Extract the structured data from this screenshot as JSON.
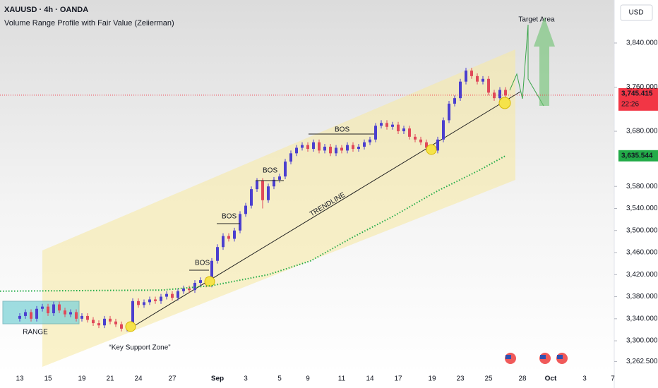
{
  "chart_data": {
    "type": "candlestick",
    "symbol": "XAUUSD · 4h · OANDA",
    "indicator": "Volume Range Profile with Fair Value (Zeiierman)",
    "currency": "USD",
    "up_color": "#4b3fcf",
    "down_color": "#e0495a",
    "xlim": [
      -3.5,
      105.25
    ],
    "ylim": [
      3240,
      3918
    ],
    "xticks": [
      {
        "value": 0,
        "label": "13"
      },
      {
        "value": 5,
        "label": "15"
      },
      {
        "value": 11,
        "label": "19"
      },
      {
        "value": 16,
        "label": "21"
      },
      {
        "value": 21,
        "label": "24"
      },
      {
        "value": 27,
        "label": "27"
      },
      {
        "value": 35,
        "label": "Sep"
      },
      {
        "value": 40,
        "label": "3"
      },
      {
        "value": 46,
        "label": "5"
      },
      {
        "value": 51,
        "label": "9"
      },
      {
        "value": 57,
        "label": "11"
      },
      {
        "value": 62,
        "label": "14"
      },
      {
        "value": 67,
        "label": "17"
      },
      {
        "value": 73,
        "label": "19"
      },
      {
        "value": 78,
        "label": "23"
      },
      {
        "value": 83,
        "label": "25"
      },
      {
        "value": 89,
        "label": "28"
      },
      {
        "value": 94,
        "label": "Oct"
      },
      {
        "value": 100,
        "label": "3"
      },
      {
        "value": 105,
        "label": "7"
      }
    ],
    "yticks": [
      {
        "value": 3262.5,
        "label": "3,262.500"
      },
      {
        "value": 3300,
        "label": "3,300.000"
      },
      {
        "value": 3340,
        "label": "3,340.000"
      },
      {
        "value": 3380,
        "label": "3,380.000"
      },
      {
        "value": 3420,
        "label": "3,420.000"
      },
      {
        "value": 3460,
        "label": "3,460.000"
      },
      {
        "value": 3500,
        "label": "3,500.000"
      },
      {
        "value": 3540,
        "label": "3,540.000"
      },
      {
        "value": 3580,
        "label": "3,580.000"
      },
      {
        "value": 3680,
        "label": "3,680.000"
      },
      {
        "value": 3760,
        "label": "3,760.000"
      },
      {
        "value": 3840,
        "label": "3,840.000"
      }
    ],
    "open": [
      3340,
      3345,
      3352,
      3340,
      3358,
      3362,
      3350,
      3366,
      3355,
      3348,
      3352,
      3340,
      3345,
      3338,
      3332,
      3328,
      3340,
      3335,
      3330,
      3322,
      3326,
      3372,
      3365,
      3370,
      3375,
      3372,
      3380,
      3385,
      3378,
      3390,
      3395,
      3392,
      3405,
      3410,
      3402,
      3445,
      3470,
      3490,
      3485,
      3500,
      3530,
      3545,
      3575,
      3590,
      3555,
      3580,
      3592,
      3598,
      3625,
      3640,
      3650,
      3655,
      3648,
      3660,
      3645,
      3652,
      3640,
      3650,
      3645,
      3655,
      3648,
      3652,
      3660,
      3665,
      3690,
      3695,
      3688,
      3692,
      3680,
      3685,
      3670,
      3665,
      3660,
      3650,
      3645,
      3665,
      3700,
      3730,
      3740,
      3770,
      3790,
      3780,
      3770,
      3775,
      3750,
      3740,
      3755
    ],
    "high": [
      3350,
      3357,
      3357,
      3363,
      3367,
      3367,
      3371,
      3371,
      3360,
      3357,
      3357,
      3350,
      3350,
      3343,
      3337,
      3345,
      3345,
      3340,
      3335,
      3331,
      3377,
      3377,
      3375,
      3380,
      3380,
      3385,
      3390,
      3390,
      3395,
      3400,
      3400,
      3410,
      3415,
      3415,
      3450,
      3475,
      3495,
      3495,
      3505,
      3535,
      3550,
      3580,
      3595,
      3595,
      3585,
      3597,
      3603,
      3630,
      3645,
      3655,
      3660,
      3660,
      3665,
      3665,
      3657,
      3657,
      3655,
      3655,
      3660,
      3660,
      3657,
      3665,
      3670,
      3695,
      3700,
      3700,
      3697,
      3697,
      3690,
      3690,
      3675,
      3670,
      3665,
      3655,
      3670,
      3705,
      3735,
      3745,
      3775,
      3795,
      3795,
      3785,
      3780,
      3780,
      3755,
      3760,
      3760
    ],
    "low": [
      3335,
      3340,
      3335,
      3335,
      3353,
      3345,
      3345,
      3350,
      3343,
      3343,
      3335,
      3335,
      3333,
      3327,
      3323,
      3323,
      3330,
      3325,
      3317,
      3317,
      3321,
      3360,
      3360,
      3365,
      3367,
      3367,
      3375,
      3373,
      3373,
      3385,
      3387,
      3387,
      3400,
      3397,
      3397,
      3440,
      3465,
      3480,
      3480,
      3495,
      3525,
      3540,
      3570,
      3540,
      3550,
      3575,
      3587,
      3593,
      3620,
      3635,
      3645,
      3643,
      3643,
      3640,
      3640,
      3635,
      3635,
      3640,
      3640,
      3643,
      3643,
      3647,
      3655,
      3660,
      3685,
      3683,
      3683,
      3675,
      3675,
      3665,
      3660,
      3655,
      3645,
      3640,
      3640,
      3660,
      3695,
      3725,
      3735,
      3765,
      3775,
      3765,
      3765,
      3745,
      3735,
      3735,
      3740
    ],
    "close": [
      3345,
      3352,
      3340,
      3358,
      3362,
      3350,
      3366,
      3355,
      3348,
      3352,
      3340,
      3345,
      3338,
      3332,
      3328,
      3340,
      3335,
      3330,
      3322,
      3326,
      3372,
      3365,
      3370,
      3375,
      3372,
      3380,
      3385,
      3378,
      3390,
      3395,
      3392,
      3405,
      3410,
      3402,
      3445,
      3470,
      3490,
      3485,
      3500,
      3530,
      3545,
      3575,
      3590,
      3555,
      3580,
      3592,
      3598,
      3625,
      3640,
      3650,
      3655,
      3648,
      3660,
      3645,
      3652,
      3640,
      3650,
      3645,
      3655,
      3648,
      3652,
      3660,
      3665,
      3690,
      3695,
      3688,
      3692,
      3680,
      3685,
      3670,
      3665,
      3660,
      3650,
      3645,
      3665,
      3700,
      3730,
      3740,
      3770,
      3790,
      3780,
      3770,
      3775,
      3750,
      3740,
      3755,
      3745
    ],
    "last_price": {
      "value": 3745.415,
      "label": "3,745.415",
      "countdown": "22:26",
      "color": "#f23645"
    },
    "fair_value": {
      "color": "#22ab48",
      "label": "3,635.544",
      "x": [
        -3.5,
        25.25,
        34,
        44,
        51.5,
        59,
        66.5,
        74,
        81.5,
        86
      ],
      "values": [
        3390,
        3392,
        3400,
        3420,
        3445,
        3488,
        3528,
        3572,
        3610,
        3635.544
      ]
    },
    "annotations": {
      "bos": [
        "BOS",
        "BOS",
        "BOS",
        "BOS"
      ],
      "trendline": "TRENDLINE",
      "range": "RANGE",
      "support": "“Key Support Zone”",
      "target": "Target Area"
    }
  }
}
